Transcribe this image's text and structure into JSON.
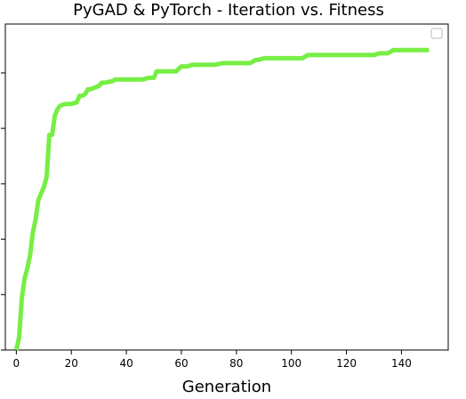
{
  "chart_data": {
    "type": "line",
    "title": "PyGAD & PyTorch - Iteration vs. Fitness",
    "xlabel": "Generation",
    "ylabel": "",
    "xlim": [
      -4,
      157
    ],
    "ylim": [
      0.0,
      1.0
    ],
    "x_ticks": [
      0,
      20,
      40,
      60,
      80,
      100,
      120,
      140
    ],
    "y_ticks": [
      0.0,
      0.17,
      0.34,
      0.51,
      0.68,
      0.85
    ],
    "grid": false,
    "legend": {
      "placement": "top-right",
      "entries": [
        ""
      ]
    },
    "line_color": "#77ee44",
    "series": [
      {
        "x": [
          0,
          1,
          2,
          3,
          4,
          5,
          6,
          7,
          8,
          9,
          10,
          11,
          12,
          13,
          14,
          15,
          16,
          18,
          20,
          22,
          23,
          24,
          25,
          26,
          27,
          30,
          31,
          32,
          35,
          36,
          40,
          45,
          46,
          48,
          50,
          51,
          55,
          58,
          60,
          62,
          64,
          70,
          72,
          75,
          80,
          85,
          87,
          88,
          90,
          100,
          104,
          106,
          110,
          120,
          130,
          132,
          135,
          137,
          140,
          150
        ],
        "y": [
          0.0,
          0.04,
          0.16,
          0.22,
          0.25,
          0.29,
          0.36,
          0.4,
          0.46,
          0.48,
          0.5,
          0.53,
          0.66,
          0.66,
          0.72,
          0.74,
          0.75,
          0.755,
          0.755,
          0.76,
          0.78,
          0.78,
          0.785,
          0.8,
          0.8,
          0.81,
          0.82,
          0.82,
          0.825,
          0.83,
          0.83,
          0.83,
          0.83,
          0.835,
          0.835,
          0.855,
          0.855,
          0.855,
          0.87,
          0.87,
          0.875,
          0.875,
          0.875,
          0.88,
          0.88,
          0.88,
          0.89,
          0.89,
          0.895,
          0.895,
          0.895,
          0.905,
          0.905,
          0.905,
          0.905,
          0.91,
          0.91,
          0.92,
          0.92,
          0.92
        ]
      }
    ]
  }
}
